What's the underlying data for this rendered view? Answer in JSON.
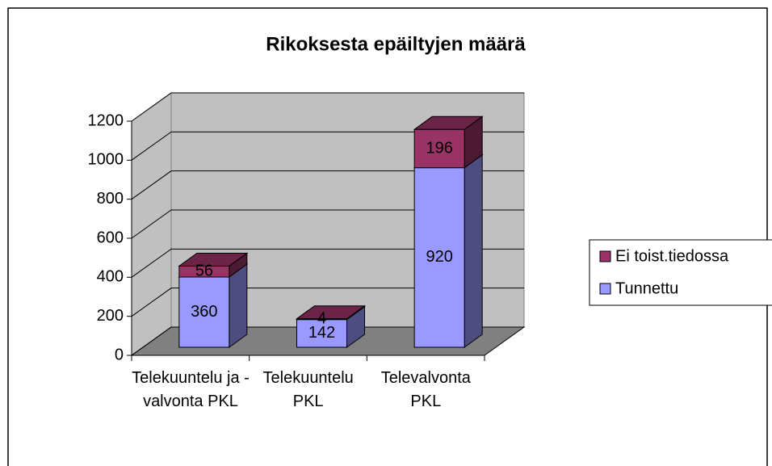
{
  "chart_data": {
    "type": "bar3d_stacked",
    "title": "Rikoksesta epäiltyjen määrä",
    "categories": [
      "Telekuuntelu ja -valvonta PKL",
      "Telekuuntelu PKL",
      "Televalvonta PKL"
    ],
    "series": [
      {
        "name": "Tunnettu",
        "color": "#9999ff",
        "values": [
          360,
          142,
          920
        ]
      },
      {
        "name": "Ei toist.tiedossa",
        "color": "#993366",
        "values": [
          56,
          4,
          196
        ]
      }
    ],
    "ylim": [
      0,
      1200
    ],
    "yticks": [
      0,
      200,
      400,
      600,
      800,
      1000,
      1200
    ],
    "grid": true,
    "legend": "right"
  }
}
